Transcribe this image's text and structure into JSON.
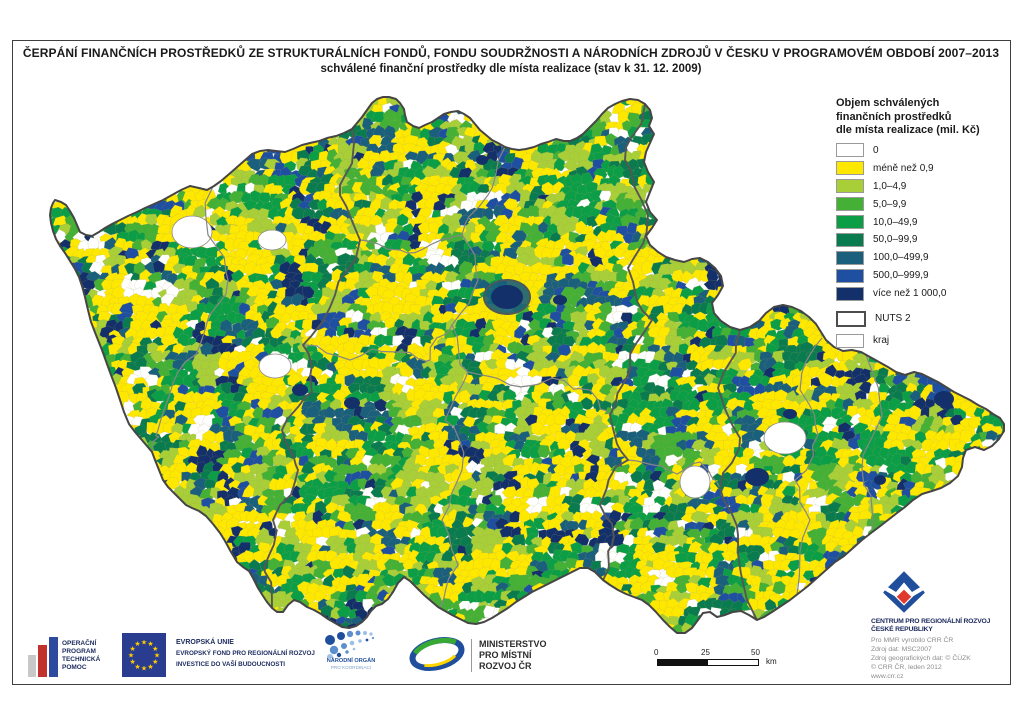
{
  "title": {
    "line1": "ČERPÁNÍ FINANČNÍCH PROSTŘEDKŮ ZE STRUKTURÁLNÍCH FONDŮ, FONDU SOUDRŽNOSTI A NÁRODNÍCH ZDROJŮ V ČESKU V PROGRAMOVÉM OBDOBÍ 2007–2013",
    "line2": "schválené finanční prostředky dle místa realizace (stav k 31. 12. 2009)"
  },
  "legend": {
    "title_lines": [
      "Objem schválených",
      "finančních prostředků",
      "dle místa realizace (mil. Kč)"
    ],
    "items": [
      {
        "label": "0",
        "color": "#FFFFFF",
        "weight": 6
      },
      {
        "label": "méně než 0,9",
        "color": "#FFE800",
        "weight": 34
      },
      {
        "label": "1,0–4,9",
        "color": "#A8CE38",
        "weight": 13
      },
      {
        "label": "5,0–9,9",
        "color": "#44B035",
        "weight": 11
      },
      {
        "label": "10,0–49,9",
        "color": "#0C9E47",
        "weight": 13
      },
      {
        "label": "50,0–99,9",
        "color": "#0A7B4F",
        "weight": 8
      },
      {
        "label": "100,0–499,9",
        "color": "#1A5F7B",
        "weight": 6
      },
      {
        "label": "500,0–999,9",
        "color": "#1F4FA0",
        "weight": 4
      },
      {
        "label": "více než 1 000,0",
        "color": "#13306B",
        "weight": 5
      }
    ],
    "outline_items": [
      {
        "label": "NUTS 2",
        "border_color": "#4d4d4d",
        "border_width": 2
      },
      {
        "label": "kraj",
        "border_color": "#9a9a9a",
        "border_width": 1.4
      }
    ]
  },
  "scalebar": {
    "ticks": [
      "0",
      "25",
      "50"
    ],
    "unit": "km"
  },
  "logos": {
    "optp": {
      "lines": [
        "OPERAČNÍ",
        "PROGRAM",
        "TECHNICKÁ",
        "POMOC"
      ]
    },
    "eu": {
      "lines": [
        "EVROPSKÁ UNIE",
        "EVROPSKÝ FOND PRO REGIONÁLNÍ ROZVOJ",
        "INVESTICE DO VAŠÍ BUDOUCNOSTI"
      ]
    },
    "nok": {
      "line1": "NÁRODNÍ ORGÁN",
      "line2": "PRO KOORDINACI"
    },
    "mmr": {
      "lines": [
        "MINISTERSTVO",
        "PRO MÍSTNÍ",
        "ROZVOJ ČR"
      ]
    }
  },
  "credits": {
    "org_line1": "CENTRUM PRO REGIONÁLNÍ ROZVOJ",
    "org_line2": "ČESKÉ REPUBLIKY",
    "lines": [
      "Pro MMR vyrobilo CRR ČR",
      "Zdroj dat: MSC2007",
      "Zdroj geografických dat: © ČÚZK",
      "© CRR ČR, leden 2012",
      "www.crr.cz"
    ]
  },
  "colors": {
    "border": "#454545",
    "kraj_line": "#868686",
    "nuts2_line": "#565656",
    "eu_flag_blue": "#2A3C8F",
    "eu_star_yellow": "#FFCC00",
    "brand_navy": "#1B2A5E"
  }
}
